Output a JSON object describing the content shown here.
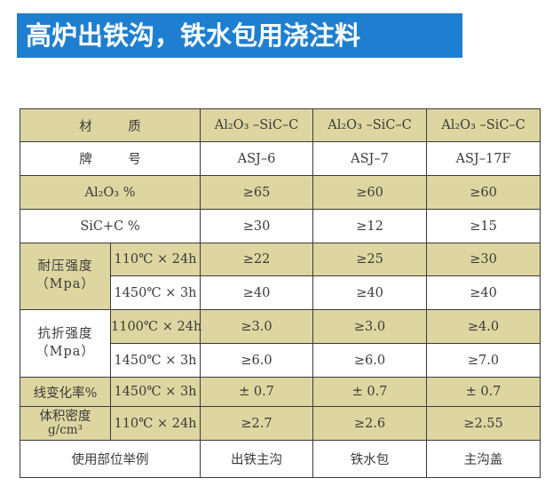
{
  "title": "高炉出铁沟，铁水包用浇注料",
  "table": {
    "header": {
      "material_label": "材 质",
      "material_values": [
        "Al₂O₃ –SiC–C",
        "Al₂O₃ –SiC–C",
        "Al₂O₃ –SiC–C"
      ],
      "grade_label": "牌 号",
      "grade_values": [
        "ASJ–6",
        "ASJ–7",
        "ASJ–17F"
      ]
    },
    "al2o3": {
      "label": "Al₂O₃ %",
      "values": [
        "≥65",
        "≥60",
        "≥60"
      ]
    },
    "sic_c": {
      "label": "SiC+C %",
      "values": [
        "≥30",
        "≥12",
        "≥15"
      ]
    },
    "compressive": {
      "label": "耐压强度",
      "unit": "（Mpa）",
      "rows": [
        {
          "cond": "110℃ × 24h",
          "values": [
            "≥22",
            "≥25",
            "≥30"
          ]
        },
        {
          "cond": "1450℃ × 3h",
          "values": [
            "≥40",
            "≥40",
            "≥40"
          ]
        }
      ]
    },
    "flexural": {
      "label": "抗折强度",
      "unit": "（Mpa）",
      "rows": [
        {
          "cond": "1100℃ × 24h",
          "values": [
            "≥3.0",
            "≥3.0",
            "≥4.0"
          ]
        },
        {
          "cond": "1450℃ × 3h",
          "values": [
            "≥6.0",
            "≥6.0",
            "≥7.0"
          ]
        }
      ]
    },
    "linear_change": {
      "label": "线变化率%",
      "cond": "1450℃ × 3h",
      "values": [
        "± 0.7",
        "± 0.7",
        "± 0.7"
      ]
    },
    "density": {
      "label": "体积密度",
      "unit": "g/cm³",
      "cond": "110℃ × 24h",
      "values": [
        "≥2.7",
        "≥2.6",
        "≥2.55"
      ]
    },
    "usage": {
      "label": "使用部位举例",
      "values": [
        "出铁主沟",
        "铁水包",
        "主沟盖"
      ]
    }
  }
}
